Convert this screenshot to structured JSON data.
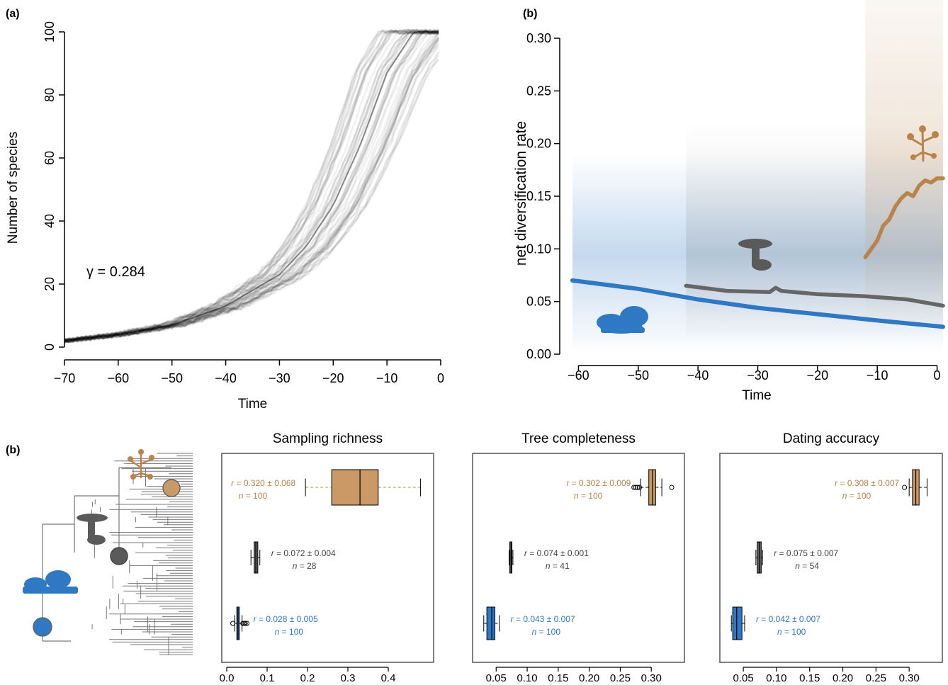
{
  "panel_a": {
    "label": "(a)",
    "annotation": "γ = 0.284"
  },
  "panel_b_top": {
    "label": "(b)"
  },
  "panel_b_bottom": {
    "label": "(b)"
  },
  "colors": {
    "blue": "#2f78c4",
    "gray": "#5a5a5a",
    "tan": "#b9834a",
    "tan_light": "#c99966",
    "black": "#1a1a1a"
  },
  "chart_data": [
    {
      "type": "line",
      "xlabel": "Time",
      "ylabel": "Number of species",
      "xlim": [
        -70,
        0
      ],
      "ylim": [
        0,
        100
      ],
      "xticks": [
        -70,
        -60,
        -50,
        -40,
        -30,
        -20,
        -10,
        0
      ],
      "yticks": [
        0,
        20,
        40,
        60,
        80,
        100
      ],
      "xtick_labels": [
        "−70",
        "−60",
        "−50",
        "−40",
        "−30",
        "−20",
        "−10",
        "0"
      ],
      "ytick_labels": [
        "0",
        "20",
        "40",
        "60",
        "80",
        "100"
      ],
      "series": [
        {
          "x": [
            -70,
            -60,
            -50,
            -40,
            -30,
            -25,
            -20,
            -15,
            -10,
            -5,
            -3,
            0
          ],
          "y": [
            2,
            4,
            7,
            13,
            23,
            32,
            45,
            64,
            87,
            100,
            100,
            100
          ]
        }
      ]
    },
    {
      "type": "line",
      "xlabel": "Time",
      "ylabel": "net diversification rate",
      "xlim": [
        -61,
        1
      ],
      "ylim": [
        0,
        0.3
      ],
      "xticks": [
        -60,
        -50,
        -40,
        -30,
        -20,
        -10,
        0
      ],
      "yticks": [
        0,
        0.05,
        0.1,
        0.15,
        0.2,
        0.25,
        0.3
      ],
      "xtick_labels": [
        "−60",
        "−50",
        "−40",
        "−30",
        "−20",
        "−10",
        "0"
      ],
      "ytick_labels": [
        "0.00",
        "0.05",
        "0.10",
        "0.15",
        "0.20",
        "0.25",
        "0.30"
      ],
      "series": [
        {
          "color": "#2f78c4",
          "x": [
            -61,
            -50,
            -40,
            -30,
            -20,
            -10,
            1
          ],
          "y": [
            0.07,
            0.062,
            0.052,
            0.044,
            0.038,
            0.032,
            0.026
          ]
        },
        {
          "color": "#666666",
          "x": [
            -42,
            -35,
            -28,
            -27,
            -26,
            -20,
            -12,
            -5,
            1
          ],
          "y": [
            0.065,
            0.06,
            0.059,
            0.063,
            0.06,
            0.057,
            0.055,
            0.052,
            0.046
          ]
        },
        {
          "color": "#b9834a",
          "x": [
            -12,
            -11,
            -10,
            -9,
            -8,
            -7,
            -6,
            -5,
            -4,
            -3,
            -2,
            -1,
            0,
            1
          ],
          "y": [
            0.092,
            0.1,
            0.108,
            0.122,
            0.128,
            0.14,
            0.148,
            0.153,
            0.15,
            0.16,
            0.165,
            0.163,
            0.167,
            0.167
          ]
        }
      ]
    },
    {
      "type": "box",
      "title": "Sampling richness",
      "xlim": [
        0,
        0.5
      ],
      "xticks": [
        0,
        0.1,
        0.2,
        0.3,
        0.4
      ],
      "xtick_labels": [
        "0.0",
        "0.1",
        "0.2",
        "0.3",
        "0.4"
      ],
      "boxes": [
        {
          "group": "tan",
          "min": 0.195,
          "q1": 0.26,
          "median": 0.33,
          "q3": 0.375,
          "max": 0.48,
          "outliers": [],
          "label_r": "= 0.320 ± 0.068",
          "label_n": "= 100"
        },
        {
          "group": "gray",
          "min": 0.06,
          "q1": 0.068,
          "median": 0.072,
          "q3": 0.077,
          "max": 0.082,
          "outliers": [],
          "label_r": "= 0.072 ± 0.004",
          "label_n": "= 28"
        },
        {
          "group": "blue",
          "min": 0.02,
          "q1": 0.025,
          "median": 0.028,
          "q3": 0.031,
          "max": 0.038,
          "outliers": [
            0.015,
            0.04,
            0.043,
            0.046,
            0.05
          ],
          "label_r": "= 0.028 ± 0.005",
          "label_n": "= 100"
        }
      ]
    },
    {
      "type": "box",
      "title": "Tree completeness",
      "xlim": [
        0.02,
        0.35
      ],
      "xticks": [
        0.05,
        0.1,
        0.15,
        0.2,
        0.25,
        0.3
      ],
      "xtick_labels": [
        "0.05",
        "0.10",
        "0.15",
        "0.20",
        "0.25",
        "0.30"
      ],
      "boxes": [
        {
          "group": "tan",
          "min": 0.283,
          "q1": 0.296,
          "median": 0.302,
          "q3": 0.307,
          "max": 0.317,
          "outliers": [
            0.272,
            0.275,
            0.278,
            0.281,
            0.333
          ],
          "label_r": "= 0.302 ± 0.009",
          "label_n": "= 100"
        },
        {
          "group": "gray",
          "min": 0.071,
          "q1": 0.072,
          "median": 0.074,
          "q3": 0.075,
          "max": 0.077,
          "outliers": [],
          "label_r": "= 0.074 ± 0.001",
          "label_n": "= 41"
        },
        {
          "group": "blue",
          "min": 0.03,
          "q1": 0.035,
          "median": 0.043,
          "q3": 0.048,
          "max": 0.055,
          "outliers": [],
          "label_r": "= 0.043 ± 0.007",
          "label_n": "= 100"
        }
      ]
    },
    {
      "type": "box",
      "title": "Dating accuracy",
      "xlim": [
        0.02,
        0.35
      ],
      "xticks": [
        0.05,
        0.1,
        0.15,
        0.2,
        0.25,
        0.3
      ],
      "xtick_labels": [
        "0.05",
        "0.10",
        "0.15",
        "0.20",
        "0.25",
        "0.30"
      ],
      "boxes": [
        {
          "group": "tan",
          "min": 0.3,
          "q1": 0.305,
          "median": 0.31,
          "q3": 0.315,
          "max": 0.327,
          "outliers": [
            0.293
          ],
          "label_r": "= 0.308 ± 0.007",
          "label_n": "= 100"
        },
        {
          "group": "gray",
          "min": 0.069,
          "q1": 0.071,
          "median": 0.074,
          "q3": 0.077,
          "max": 0.079,
          "outliers": [],
          "label_r": "= 0.075 ± 0.007",
          "label_n": "= 54"
        },
        {
          "group": "blue",
          "min": 0.032,
          "q1": 0.034,
          "median": 0.04,
          "q3": 0.048,
          "max": 0.052,
          "outliers": [],
          "label_r": "= 0.042 ± 0.007",
          "label_n": "= 100"
        }
      ]
    }
  ],
  "italic_r": "r",
  "italic_n": "n"
}
